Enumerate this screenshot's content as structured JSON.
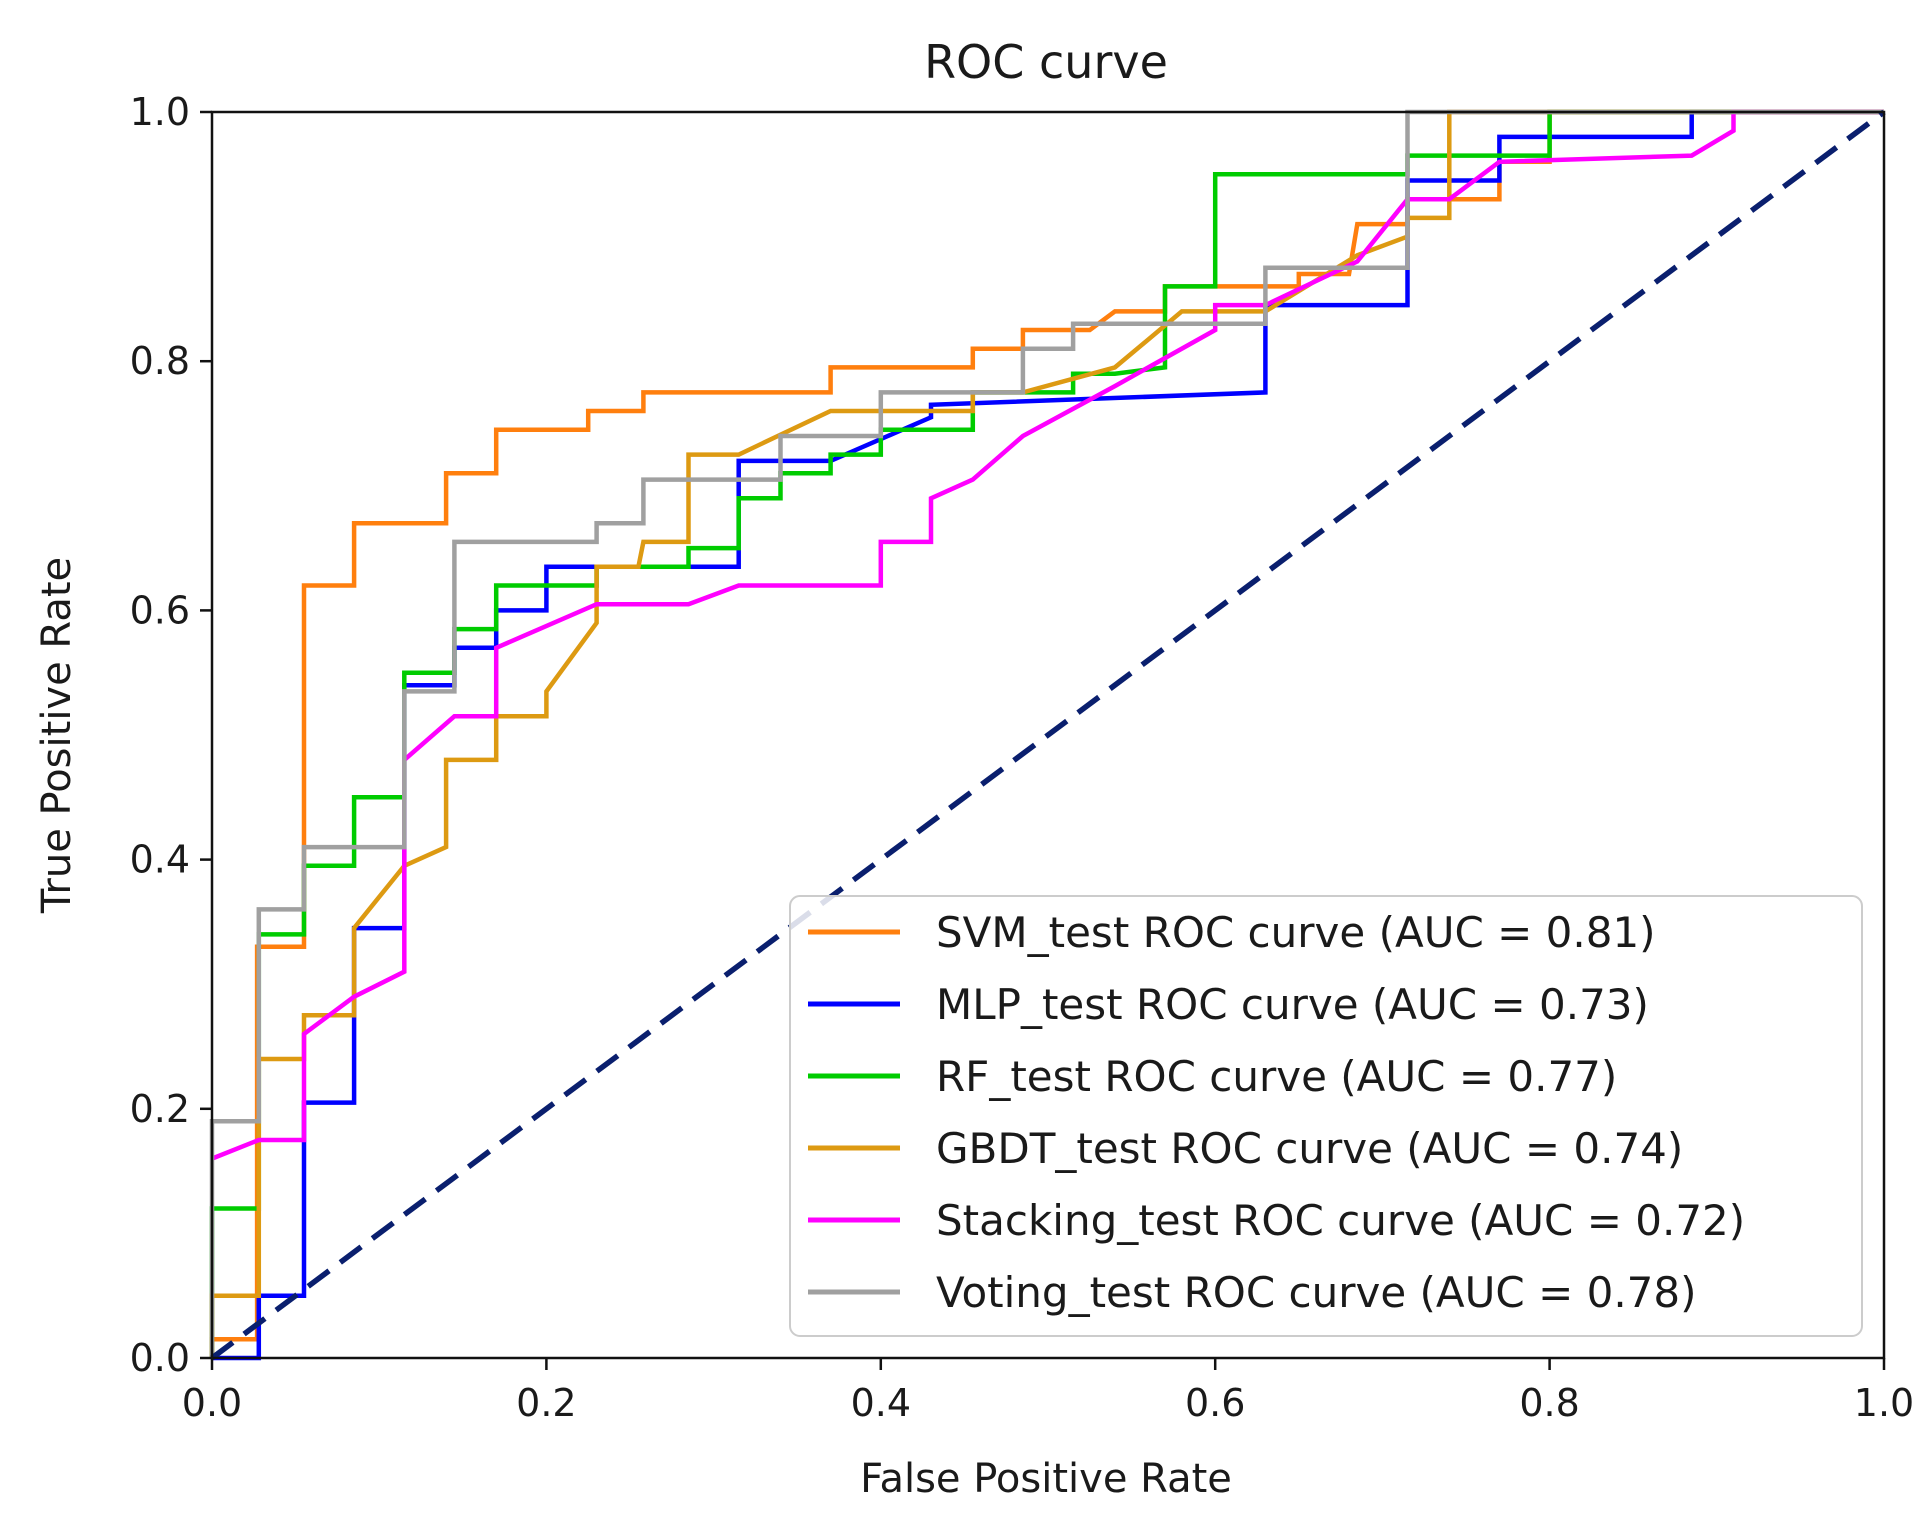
{
  "chart_data": {
    "type": "line",
    "title": "ROC curve",
    "xlabel": "False Positive Rate",
    "ylabel": "True Positive Rate",
    "xlim": [
      0.0,
      1.0
    ],
    "ylim": [
      0.0,
      1.0
    ],
    "xticks": [
      "0.0",
      "0.2",
      "0.4",
      "0.6",
      "0.8",
      "1.0"
    ],
    "yticks": [
      "0.0",
      "0.2",
      "0.4",
      "0.6",
      "0.8",
      "1.0"
    ],
    "grid": false,
    "legend_position": "lower-right",
    "series": [
      {
        "name": "SVM_test ROC curve (AUC = 0.81)",
        "color": "#ff7f0e",
        "points": [
          [
            0,
            0
          ],
          [
            0,
            0.015
          ],
          [
            0.027,
            0.015
          ],
          [
            0.027,
            0.33
          ],
          [
            0.055,
            0.33
          ],
          [
            0.055,
            0.62
          ],
          [
            0.085,
            0.62
          ],
          [
            0.085,
            0.67
          ],
          [
            0.14,
            0.67
          ],
          [
            0.14,
            0.71
          ],
          [
            0.17,
            0.71
          ],
          [
            0.17,
            0.745
          ],
          [
            0.225,
            0.745
          ],
          [
            0.225,
            0.76
          ],
          [
            0.258,
            0.76
          ],
          [
            0.258,
            0.775
          ],
          [
            0.37,
            0.775
          ],
          [
            0.37,
            0.795
          ],
          [
            0.455,
            0.795
          ],
          [
            0.455,
            0.81
          ],
          [
            0.485,
            0.81
          ],
          [
            0.485,
            0.825
          ],
          [
            0.525,
            0.825
          ],
          [
            0.54,
            0.84
          ],
          [
            0.57,
            0.84
          ],
          [
            0.57,
            0.86
          ],
          [
            0.65,
            0.86
          ],
          [
            0.65,
            0.87
          ],
          [
            0.68,
            0.87
          ],
          [
            0.685,
            0.91
          ],
          [
            0.715,
            0.91
          ],
          [
            0.715,
            0.93
          ],
          [
            0.77,
            0.93
          ],
          [
            0.77,
            0.96
          ],
          [
            0.8,
            0.96
          ],
          [
            0.8,
            1.0
          ],
          [
            1.0,
            1.0
          ]
        ]
      },
      {
        "name": "MLP_test ROC curve (AUC = 0.73)",
        "color": "#0000ff",
        "points": [
          [
            0,
            0
          ],
          [
            0.028,
            0
          ],
          [
            0.028,
            0.05
          ],
          [
            0.055,
            0.05
          ],
          [
            0.055,
            0.205
          ],
          [
            0.085,
            0.205
          ],
          [
            0.085,
            0.345
          ],
          [
            0.115,
            0.345
          ],
          [
            0.115,
            0.54
          ],
          [
            0.145,
            0.54
          ],
          [
            0.145,
            0.57
          ],
          [
            0.17,
            0.57
          ],
          [
            0.17,
            0.6
          ],
          [
            0.2,
            0.6
          ],
          [
            0.2,
            0.635
          ],
          [
            0.23,
            0.635
          ],
          [
            0.315,
            0.635
          ],
          [
            0.315,
            0.72
          ],
          [
            0.34,
            0.72
          ],
          [
            0.37,
            0.72
          ],
          [
            0.43,
            0.755
          ],
          [
            0.43,
            0.765
          ],
          [
            0.63,
            0.775
          ],
          [
            0.63,
            0.845
          ],
          [
            0.715,
            0.845
          ],
          [
            0.715,
            0.945
          ],
          [
            0.77,
            0.945
          ],
          [
            0.77,
            0.98
          ],
          [
            0.885,
            0.98
          ],
          [
            0.885,
            1.0
          ],
          [
            1.0,
            1.0
          ]
        ]
      },
      {
        "name": "RF_test ROC curve (AUC = 0.77)",
        "color": "#00cc00",
        "points": [
          [
            0,
            0
          ],
          [
            0,
            0.12
          ],
          [
            0.028,
            0.12
          ],
          [
            0.028,
            0.34
          ],
          [
            0.055,
            0.34
          ],
          [
            0.055,
            0.395
          ],
          [
            0.085,
            0.395
          ],
          [
            0.085,
            0.45
          ],
          [
            0.115,
            0.45
          ],
          [
            0.115,
            0.55
          ],
          [
            0.145,
            0.55
          ],
          [
            0.145,
            0.585
          ],
          [
            0.17,
            0.585
          ],
          [
            0.17,
            0.62
          ],
          [
            0.23,
            0.62
          ],
          [
            0.23,
            0.635
          ],
          [
            0.285,
            0.635
          ],
          [
            0.285,
            0.65
          ],
          [
            0.315,
            0.65
          ],
          [
            0.315,
            0.69
          ],
          [
            0.34,
            0.69
          ],
          [
            0.34,
            0.71
          ],
          [
            0.37,
            0.71
          ],
          [
            0.37,
            0.725
          ],
          [
            0.4,
            0.725
          ],
          [
            0.4,
            0.745
          ],
          [
            0.455,
            0.745
          ],
          [
            0.455,
            0.775
          ],
          [
            0.515,
            0.775
          ],
          [
            0.515,
            0.79
          ],
          [
            0.54,
            0.79
          ],
          [
            0.57,
            0.795
          ],
          [
            0.57,
            0.86
          ],
          [
            0.6,
            0.86
          ],
          [
            0.6,
            0.95
          ],
          [
            0.715,
            0.95
          ],
          [
            0.715,
            0.965
          ],
          [
            0.8,
            0.965
          ],
          [
            0.8,
            1.0
          ],
          [
            1.0,
            1.0
          ]
        ]
      },
      {
        "name": "GBDT_test ROC curve (AUC = 0.74)",
        "color": "#dd9a12",
        "points": [
          [
            0,
            0
          ],
          [
            0,
            0.05
          ],
          [
            0.028,
            0.05
          ],
          [
            0.028,
            0.24
          ],
          [
            0.055,
            0.24
          ],
          [
            0.055,
            0.275
          ],
          [
            0.085,
            0.275
          ],
          [
            0.085,
            0.345
          ],
          [
            0.115,
            0.395
          ],
          [
            0.14,
            0.41
          ],
          [
            0.14,
            0.48
          ],
          [
            0.17,
            0.48
          ],
          [
            0.17,
            0.515
          ],
          [
            0.2,
            0.515
          ],
          [
            0.2,
            0.535
          ],
          [
            0.23,
            0.59
          ],
          [
            0.23,
            0.635
          ],
          [
            0.255,
            0.635
          ],
          [
            0.258,
            0.655
          ],
          [
            0.285,
            0.655
          ],
          [
            0.285,
            0.725
          ],
          [
            0.315,
            0.725
          ],
          [
            0.37,
            0.76
          ],
          [
            0.455,
            0.76
          ],
          [
            0.455,
            0.775
          ],
          [
            0.485,
            0.775
          ],
          [
            0.54,
            0.795
          ],
          [
            0.58,
            0.84
          ],
          [
            0.63,
            0.84
          ],
          [
            0.685,
            0.885
          ],
          [
            0.715,
            0.9
          ],
          [
            0.715,
            0.915
          ],
          [
            0.74,
            0.915
          ],
          [
            0.74,
            1.0
          ],
          [
            1.0,
            1.0
          ]
        ]
      },
      {
        "name": "Stacking_test ROC curve (AUC = 0.72)",
        "color": "#ff00ff",
        "points": [
          [
            0,
            0.16
          ],
          [
            0.028,
            0.175
          ],
          [
            0.055,
            0.175
          ],
          [
            0.055,
            0.26
          ],
          [
            0.085,
            0.29
          ],
          [
            0.115,
            0.31
          ],
          [
            0.115,
            0.48
          ],
          [
            0.145,
            0.515
          ],
          [
            0.17,
            0.515
          ],
          [
            0.17,
            0.57
          ],
          [
            0.23,
            0.605
          ],
          [
            0.285,
            0.605
          ],
          [
            0.315,
            0.62
          ],
          [
            0.4,
            0.62
          ],
          [
            0.4,
            0.655
          ],
          [
            0.43,
            0.655
          ],
          [
            0.43,
            0.69
          ],
          [
            0.455,
            0.705
          ],
          [
            0.485,
            0.74
          ],
          [
            0.54,
            0.78
          ],
          [
            0.6,
            0.825
          ],
          [
            0.6,
            0.845
          ],
          [
            0.63,
            0.845
          ],
          [
            0.685,
            0.88
          ],
          [
            0.715,
            0.93
          ],
          [
            0.74,
            0.93
          ],
          [
            0.77,
            0.96
          ],
          [
            0.885,
            0.965
          ],
          [
            0.91,
            0.985
          ],
          [
            0.91,
            1.0
          ],
          [
            1.0,
            1.0
          ]
        ]
      },
      {
        "name": "Voting_test ROC curve (AUC = 0.78)",
        "color": "#a0a0a0",
        "points": [
          [
            0,
            0
          ],
          [
            0,
            0.19
          ],
          [
            0.028,
            0.19
          ],
          [
            0.028,
            0.36
          ],
          [
            0.055,
            0.36
          ],
          [
            0.055,
            0.41
          ],
          [
            0.115,
            0.41
          ],
          [
            0.115,
            0.535
          ],
          [
            0.145,
            0.535
          ],
          [
            0.145,
            0.655
          ],
          [
            0.23,
            0.655
          ],
          [
            0.23,
            0.67
          ],
          [
            0.258,
            0.67
          ],
          [
            0.258,
            0.705
          ],
          [
            0.34,
            0.705
          ],
          [
            0.34,
            0.74
          ],
          [
            0.4,
            0.74
          ],
          [
            0.4,
            0.775
          ],
          [
            0.485,
            0.775
          ],
          [
            0.485,
            0.81
          ],
          [
            0.515,
            0.81
          ],
          [
            0.515,
            0.83
          ],
          [
            0.63,
            0.83
          ],
          [
            0.63,
            0.875
          ],
          [
            0.715,
            0.875
          ],
          [
            0.715,
            1.0
          ],
          [
            1.0,
            1.0
          ]
        ]
      },
      {
        "name": "baseline",
        "color": "#0a1f6e",
        "dashed": true,
        "points": [
          [
            0,
            0
          ],
          [
            1,
            1
          ]
        ]
      }
    ]
  }
}
